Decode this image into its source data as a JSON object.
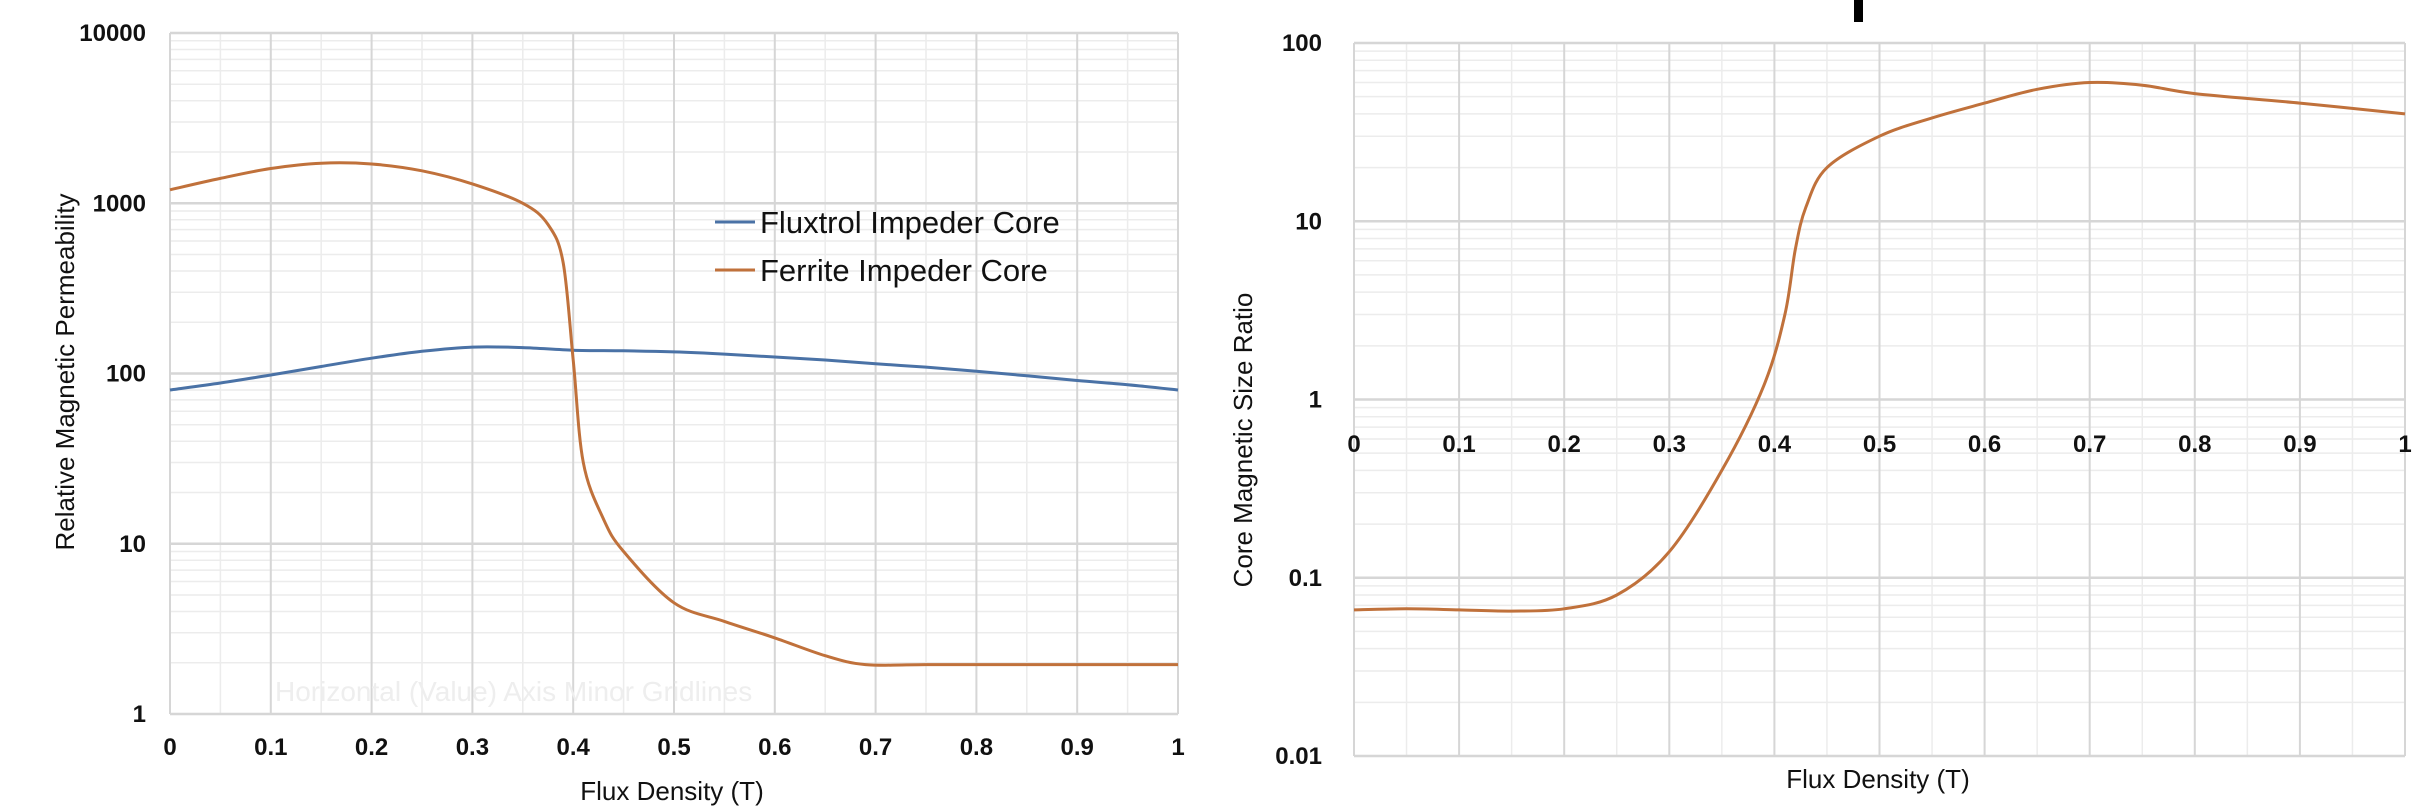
{
  "colors": {
    "fluxtrol": "#4a72a6",
    "ferrite": "#c0713b",
    "grid_major": "#d6d6d6",
    "grid_minor": "#ececec",
    "text": "#111111"
  },
  "chart_data": [
    {
      "type": "line",
      "yscale": "log",
      "xlabel": "Flux Density (T)",
      "ylabel": "Relative Magnetic Permeability",
      "xlim": [
        0,
        1
      ],
      "ylim": [
        1,
        10000
      ],
      "x_ticks": [
        "0",
        "0.1",
        "0.2",
        "0.3",
        "0.4",
        "0.5",
        "0.6",
        "0.7",
        "0.8",
        "0.9",
        "1"
      ],
      "y_ticks": [
        "1",
        "10",
        "100",
        "1000",
        "10000"
      ],
      "annotation": "Horizontal (Value) Axis Minor Gridlines",
      "legend_position": "right-upper",
      "series": [
        {
          "name": "Fluxtrol Impeder Core",
          "color": "#4a72a6",
          "x": [
            0,
            0.05,
            0.1,
            0.15,
            0.2,
            0.25,
            0.3,
            0.35,
            0.4,
            0.45,
            0.5,
            0.55,
            0.6,
            0.65,
            0.7,
            0.75,
            0.8,
            0.85,
            0.9,
            0.95,
            1
          ],
          "y": [
            80,
            88,
            98,
            110,
            123,
            135,
            143,
            142,
            137,
            136,
            134,
            130,
            125,
            120,
            114,
            109,
            103,
            97,
            91,
            86,
            80
          ]
        },
        {
          "name": "Ferrite Impeder Core",
          "color": "#c0713b",
          "x": [
            0,
            0.05,
            0.1,
            0.15,
            0.2,
            0.25,
            0.3,
            0.35,
            0.375,
            0.39,
            0.4,
            0.41,
            0.43,
            0.45,
            0.5,
            0.55,
            0.6,
            0.65,
            0.69,
            0.75,
            0.8,
            0.9,
            1
          ],
          "y": [
            1200,
            1400,
            1600,
            1720,
            1700,
            1550,
            1300,
            1000,
            750,
            450,
            120,
            30,
            14,
            9,
            4.5,
            3.5,
            2.8,
            2.2,
            1.95,
            1.95,
            1.95,
            1.95,
            1.95
          ]
        }
      ]
    },
    {
      "type": "line",
      "yscale": "log",
      "xlabel": "Flux Density (T)",
      "ylabel": "Core Magnetic Size Ratio",
      "xlim": [
        0,
        1
      ],
      "ylim": [
        0.01,
        100
      ],
      "x_ticks": [
        "0",
        "0.1",
        "0.2",
        "0.3",
        "0.4",
        "0.5",
        "0.6",
        "0.7",
        "0.8",
        "0.9",
        "1"
      ],
      "y_ticks": [
        "0.01",
        "0.1",
        "1",
        "10",
        "100"
      ],
      "x_tick_position": "at y = 1",
      "series": [
        {
          "name": "Core Magnetic Size Ratio",
          "color": "#c0713b",
          "x": [
            0,
            0.05,
            0.1,
            0.15,
            0.2,
            0.25,
            0.3,
            0.35,
            0.39,
            0.41,
            0.42,
            0.43,
            0.45,
            0.5,
            0.55,
            0.6,
            0.65,
            0.7,
            0.75,
            0.8,
            0.9,
            1
          ],
          "y": [
            0.066,
            0.067,
            0.066,
            0.065,
            0.067,
            0.08,
            0.14,
            0.4,
            1.2,
            3,
            7,
            12,
            20,
            30,
            38,
            46,
            55,
            60,
            58,
            52,
            46,
            40
          ]
        }
      ]
    }
  ]
}
